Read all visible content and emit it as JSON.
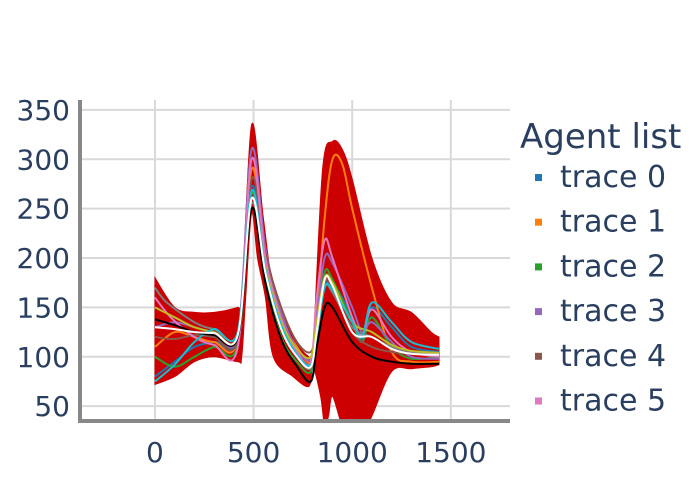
{
  "chart_data": {
    "type": "line",
    "xlim": [
      -380,
      1800
    ],
    "ylim": [
      35,
      360
    ],
    "x_ticks": [
      0,
      500,
      1000,
      1500
    ],
    "y_ticks": [
      50,
      100,
      150,
      200,
      250,
      300,
      350
    ],
    "grid": true,
    "legend": {
      "title": "Agent list",
      "placement": "right",
      "entries": [
        {
          "name": "trace 0",
          "color": "#1f77b4"
        },
        {
          "name": "trace 1",
          "color": "#ff7f0e"
        },
        {
          "name": "trace 2",
          "color": "#2ca02c"
        },
        {
          "name": "trace 3",
          "color": "#9467bd"
        },
        {
          "name": "trace 4",
          "color": "#8c564b"
        },
        {
          "name": "trace 5",
          "color": "#e377c2"
        }
      ]
    },
    "band": {
      "color": "#cc0000",
      "upper": [
        [
          0,
          180
        ],
        [
          100,
          150
        ],
        [
          200,
          145
        ],
        [
          300,
          145
        ],
        [
          420,
          150
        ],
        [
          440,
          155
        ],
        [
          490,
          335
        ],
        [
          550,
          240
        ],
        [
          600,
          170
        ],
        [
          700,
          120
        ],
        [
          780,
          100
        ],
        [
          800,
          105
        ],
        [
          850,
          290
        ],
        [
          900,
          318
        ],
        [
          950,
          310
        ],
        [
          1000,
          280
        ],
        [
          1100,
          200
        ],
        [
          1200,
          155
        ],
        [
          1300,
          145
        ],
        [
          1400,
          125
        ],
        [
          1440,
          120
        ]
      ],
      "lower": [
        [
          1440,
          92
        ],
        [
          1400,
          90
        ],
        [
          1300,
          88
        ],
        [
          1200,
          85
        ],
        [
          1100,
          40
        ],
        [
          1050,
          20
        ],
        [
          1000,
          20
        ],
        [
          950,
          30
        ],
        [
          900,
          60
        ],
        [
          880,
          40
        ],
        [
          860,
          30
        ],
        [
          840,
          60
        ],
        [
          800,
          90
        ],
        [
          780,
          70
        ],
        [
          700,
          80
        ],
        [
          600,
          100
        ],
        [
          560,
          160
        ],
        [
          520,
          200
        ],
        [
          490,
          245
        ],
        [
          460,
          160
        ],
        [
          440,
          100
        ],
        [
          420,
          95
        ],
        [
          300,
          100
        ],
        [
          200,
          95
        ],
        [
          100,
          80
        ],
        [
          0,
          72
        ]
      ]
    },
    "series": [
      {
        "color": "#1f77b4",
        "points": [
          [
            0,
            80
          ],
          [
            100,
            95
          ],
          [
            200,
            110
          ],
          [
            300,
            115
          ],
          [
            420,
            120
          ],
          [
            490,
            272
          ],
          [
            560,
            190
          ],
          [
            640,
            130
          ],
          [
            720,
            100
          ],
          [
            790,
            90
          ],
          [
            820,
            120
          ],
          [
            850,
            165
          ],
          [
            900,
            175
          ],
          [
            1000,
            140
          ],
          [
            1050,
            118
          ],
          [
            1100,
            150
          ],
          [
            1200,
            130
          ],
          [
            1300,
            110
          ],
          [
            1440,
            105
          ]
        ]
      },
      {
        "color": "#ff7f0e",
        "points": [
          [
            0,
            110
          ],
          [
            100,
            125
          ],
          [
            200,
            120
          ],
          [
            300,
            115
          ],
          [
            420,
            118
          ],
          [
            490,
            290
          ],
          [
            560,
            200
          ],
          [
            640,
            140
          ],
          [
            720,
            110
          ],
          [
            790,
            95
          ],
          [
            820,
            140
          ],
          [
            860,
            240
          ],
          [
            900,
            300
          ],
          [
            950,
            295
          ],
          [
            1000,
            250
          ],
          [
            1100,
            170
          ],
          [
            1200,
            105
          ],
          [
            1300,
            95
          ],
          [
            1440,
            95
          ]
        ]
      },
      {
        "color": "#2ca02c",
        "points": [
          [
            0,
            100
          ],
          [
            100,
            90
          ],
          [
            200,
            100
          ],
          [
            300,
            110
          ],
          [
            420,
            112
          ],
          [
            490,
            265
          ],
          [
            560,
            180
          ],
          [
            640,
            120
          ],
          [
            720,
            95
          ],
          [
            790,
            85
          ],
          [
            820,
            125
          ],
          [
            860,
            185
          ],
          [
            900,
            178
          ],
          [
            1000,
            135
          ],
          [
            1050,
            115
          ],
          [
            1100,
            140
          ],
          [
            1200,
            110
          ],
          [
            1300,
            98
          ],
          [
            1440,
            100
          ]
        ]
      },
      {
        "color": "#9467bd",
        "points": [
          [
            0,
            130
          ],
          [
            100,
            135
          ],
          [
            200,
            130
          ],
          [
            300,
            125
          ],
          [
            420,
            123
          ],
          [
            490,
            310
          ],
          [
            560,
            210
          ],
          [
            640,
            145
          ],
          [
            720,
            108
          ],
          [
            790,
            98
          ],
          [
            820,
            140
          ],
          [
            860,
            200
          ],
          [
            900,
            195
          ],
          [
            1000,
            150
          ],
          [
            1050,
            125
          ],
          [
            1100,
            135
          ],
          [
            1200,
            115
          ],
          [
            1300,
            100
          ],
          [
            1440,
            98
          ]
        ]
      },
      {
        "color": "#8c564b",
        "points": [
          [
            0,
            120
          ],
          [
            100,
            118
          ],
          [
            200,
            122
          ],
          [
            300,
            120
          ],
          [
            420,
            118
          ],
          [
            490,
            280
          ],
          [
            560,
            205
          ],
          [
            640,
            150
          ],
          [
            720,
            115
          ],
          [
            790,
            105
          ],
          [
            820,
            130
          ],
          [
            860,
            175
          ],
          [
            900,
            170
          ],
          [
            1000,
            125
          ],
          [
            1100,
            110
          ],
          [
            1200,
            105
          ],
          [
            1300,
            103
          ],
          [
            1440,
            102
          ]
        ]
      },
      {
        "color": "#e377c2",
        "points": [
          [
            0,
            160
          ],
          [
            80,
            140
          ],
          [
            200,
            120
          ],
          [
            300,
            112
          ],
          [
            420,
            110
          ],
          [
            490,
            300
          ],
          [
            560,
            200
          ],
          [
            640,
            138
          ],
          [
            720,
            105
          ],
          [
            790,
            95
          ],
          [
            820,
            160
          ],
          [
            860,
            218
          ],
          [
            900,
            200
          ],
          [
            1000,
            140
          ],
          [
            1050,
            122
          ],
          [
            1100,
            148
          ],
          [
            1200,
            120
          ],
          [
            1300,
            105
          ],
          [
            1440,
            100
          ]
        ]
      },
      {
        "color": "#7f7f7f",
        "points": [
          [
            0,
            170
          ],
          [
            60,
            155
          ],
          [
            200,
            135
          ],
          [
            300,
            128
          ],
          [
            420,
            125
          ],
          [
            490,
            255
          ],
          [
            560,
            185
          ],
          [
            640,
            130
          ],
          [
            720,
            100
          ],
          [
            790,
            88
          ],
          [
            820,
            120
          ],
          [
            860,
            170
          ],
          [
            900,
            165
          ],
          [
            1000,
            130
          ],
          [
            1100,
            120
          ],
          [
            1200,
            110
          ],
          [
            1300,
            105
          ],
          [
            1440,
            103
          ]
        ]
      },
      {
        "color": "#bcbd22",
        "points": [
          [
            0,
            150
          ],
          [
            100,
            140
          ],
          [
            200,
            130
          ],
          [
            300,
            125
          ],
          [
            420,
            122
          ],
          [
            490,
            260
          ],
          [
            560,
            190
          ],
          [
            640,
            135
          ],
          [
            720,
            108
          ],
          [
            790,
            100
          ],
          [
            820,
            135
          ],
          [
            860,
            180
          ],
          [
            900,
            175
          ],
          [
            1000,
            135
          ],
          [
            1100,
            125
          ],
          [
            1200,
            112
          ],
          [
            1300,
            106
          ],
          [
            1440,
            104
          ]
        ]
      },
      {
        "color": "#17becf",
        "points": [
          [
            0,
            75
          ],
          [
            100,
            92
          ],
          [
            200,
            115
          ],
          [
            300,
            128
          ],
          [
            420,
            125
          ],
          [
            490,
            268
          ],
          [
            560,
            188
          ],
          [
            640,
            132
          ],
          [
            720,
            102
          ],
          [
            790,
            92
          ],
          [
            820,
            122
          ],
          [
            860,
            170
          ],
          [
            900,
            168
          ],
          [
            1000,
            135
          ],
          [
            1050,
            120
          ],
          [
            1100,
            155
          ],
          [
            1200,
            135
          ],
          [
            1300,
            115
          ],
          [
            1440,
            108
          ]
        ]
      },
      {
        "color": "#000000",
        "points": [
          [
            0,
            138
          ],
          [
            100,
            132
          ],
          [
            200,
            125
          ],
          [
            300,
            122
          ],
          [
            420,
            120
          ],
          [
            490,
            250
          ],
          [
            560,
            175
          ],
          [
            640,
            118
          ],
          [
            720,
            90
          ],
          [
            790,
            75
          ],
          [
            820,
            110
          ],
          [
            860,
            150
          ],
          [
            900,
            150
          ],
          [
            1000,
            115
          ],
          [
            1100,
            100
          ],
          [
            1200,
            95
          ],
          [
            1300,
            93
          ],
          [
            1440,
            93
          ]
        ]
      },
      {
        "color": "#ffffff",
        "points": [
          [
            0,
            130
          ],
          [
            100,
            128
          ],
          [
            200,
            125
          ],
          [
            300,
            124
          ],
          [
            420,
            122
          ],
          [
            490,
            260
          ],
          [
            560,
            185
          ],
          [
            640,
            128
          ],
          [
            720,
            100
          ],
          [
            790,
            90
          ],
          [
            820,
            125
          ],
          [
            860,
            178
          ],
          [
            900,
            172
          ],
          [
            1000,
            125
          ],
          [
            1100,
            120
          ],
          [
            1200,
            108
          ],
          [
            1300,
            103
          ],
          [
            1440,
            102
          ]
        ]
      }
    ]
  }
}
